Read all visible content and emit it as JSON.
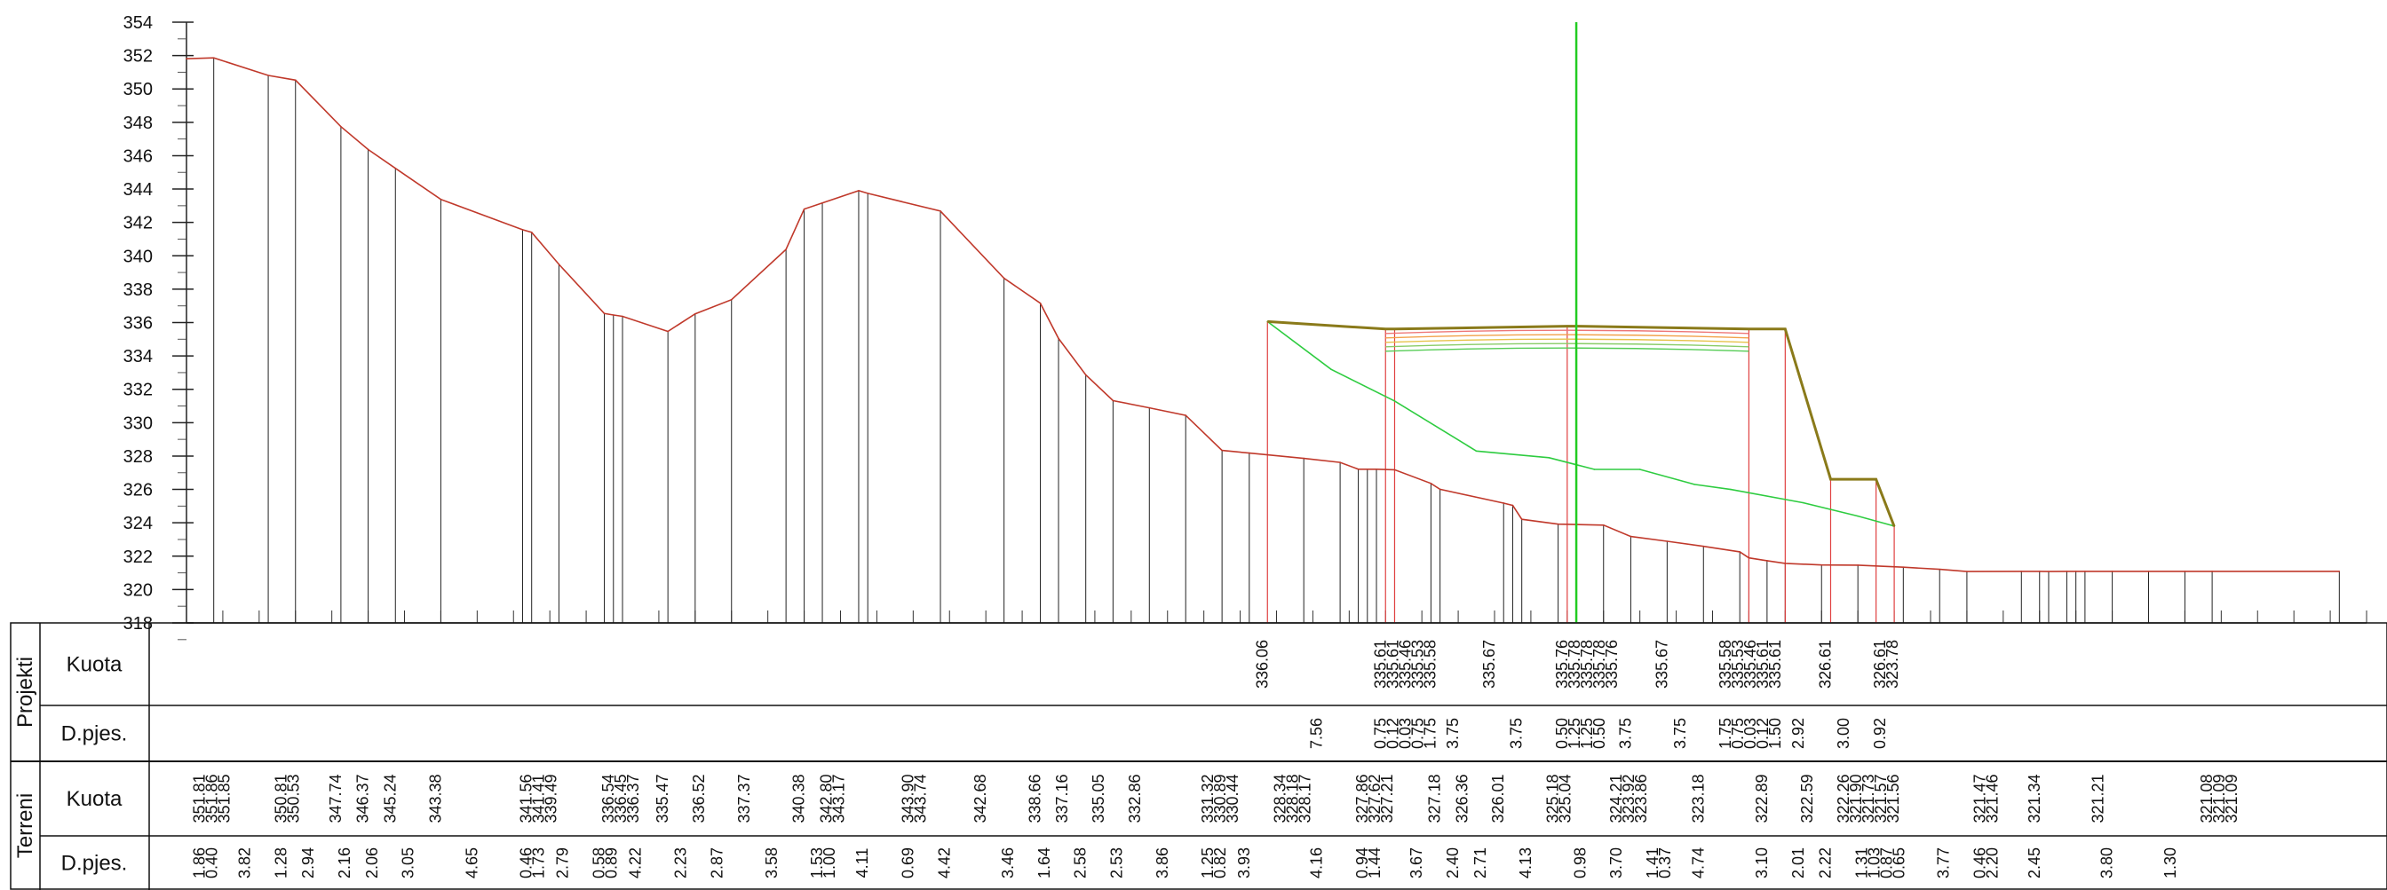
{
  "chart_data": {
    "type": "line",
    "ylim": [
      318,
      354
    ],
    "yticks": [
      354,
      352,
      350,
      348,
      346,
      344,
      342,
      340,
      338,
      336,
      334,
      332,
      330,
      328,
      326,
      324,
      322,
      320,
      318
    ],
    "xlim": [
      0,
      240
    ],
    "grid": false,
    "series": [
      {
        "key": "terrain",
        "color": "#c0392b",
        "x": [
          0,
          3,
          9,
          12,
          17,
          20,
          23,
          28,
          37,
          38,
          41,
          46,
          47,
          48,
          53,
          56,
          60,
          66,
          68,
          70,
          74,
          75,
          83,
          90,
          94,
          96,
          99,
          102,
          106,
          110,
          114,
          117,
          123,
          127,
          129,
          130,
          131,
          133,
          137,
          138,
          145,
          146,
          147,
          151,
          156,
          159,
          163,
          167,
          171,
          172,
          174,
          176,
          180,
          184,
          189,
          193,
          196,
          202,
          204,
          205,
          207,
          208,
          209,
          212,
          216,
          220,
          223,
          237
        ],
        "y": [
          351.81,
          351.86,
          350.81,
          350.53,
          347.74,
          346.37,
          345.24,
          343.38,
          341.56,
          341.41,
          339.49,
          336.54,
          336.45,
          336.37,
          335.47,
          336.52,
          337.37,
          340.38,
          342.8,
          343.17,
          343.9,
          343.74,
          342.68,
          338.66,
          337.16,
          335.05,
          332.86,
          331.32,
          330.89,
          330.44,
          328.34,
          328.18,
          327.86,
          327.62,
          327.21,
          327.21,
          327.21,
          327.18,
          326.36,
          326.01,
          325.18,
          325.04,
          324.21,
          323.92,
          323.86,
          323.18,
          322.89,
          322.59,
          322.26,
          321.9,
          321.73,
          321.57,
          321.47,
          321.46,
          321.34,
          321.21,
          321.08,
          321.09,
          321.09,
          321.08,
          321.09,
          321.09,
          321.09,
          321.09,
          321.09,
          321.09,
          321.09,
          321.09
        ]
      },
      {
        "key": "existing-ground",
        "color": "#2ecc40",
        "x": [
          119,
          126,
          133,
          142,
          150,
          155,
          160,
          166,
          170,
          178,
          184,
          188
        ],
        "y": [
          336.06,
          333.2,
          331.3,
          328.3,
          327.9,
          327.2,
          327.2,
          326.3,
          326.0,
          325.2,
          324.4,
          323.8
        ]
      },
      {
        "key": "design",
        "color": "#8a7a1a",
        "x": [
          119,
          132,
          133,
          152,
          153,
          172,
          176,
          181,
          186,
          188
        ],
        "y": [
          336.06,
          335.61,
          335.61,
          335.78,
          335.78,
          335.61,
          335.61,
          326.61,
          326.61,
          323.78
        ]
      }
    ],
    "axis_line": {
      "x": 153,
      "color": "#22cc22"
    },
    "bands": [
      {
        "group": "Projekti",
        "row": "Kuota"
      },
      {
        "group": "Projekti",
        "row": "D.pjes."
      },
      {
        "group": "Terreni",
        "row": "Kuota"
      },
      {
        "group": "Terreni",
        "row": "D.pjes."
      }
    ],
    "projekti_kuota": [
      {
        "x": 119,
        "values": [
          "336.06"
        ]
      },
      {
        "x": 132,
        "values": [
          "335.61",
          "335.61",
          "335.46",
          "335.53",
          "335.58"
        ]
      },
      {
        "x": 144,
        "values": [
          "335.67"
        ]
      },
      {
        "x": 152,
        "values": [
          "335.76",
          "335.78",
          "335.78",
          "335.78",
          "335.76"
        ]
      },
      {
        "x": 163,
        "values": [
          "335.67"
        ]
      },
      {
        "x": 170,
        "values": [
          "335.58",
          "335.53",
          "335.46",
          "335.61",
          "335.61"
        ]
      },
      {
        "x": 181,
        "values": [
          "326.61"
        ]
      },
      {
        "x": 187,
        "values": [
          "326.61",
          "323.78"
        ]
      }
    ],
    "projekti_dpjes": [
      {
        "x": 125,
        "values": [
          "7.56"
        ]
      },
      {
        "x": 132,
        "values": [
          "0.75",
          "0.12",
          "0.03",
          "0.75",
          "1.75"
        ]
      },
      {
        "x": 140,
        "values": [
          "3.75"
        ]
      },
      {
        "x": 147,
        "values": [
          "3.75"
        ]
      },
      {
        "x": 152,
        "values": [
          "0.50",
          "1.25",
          "1.25",
          "0.50"
        ]
      },
      {
        "x": 159,
        "values": [
          "3.75"
        ]
      },
      {
        "x": 165,
        "values": [
          "3.75"
        ]
      },
      {
        "x": 170,
        "values": [
          "1.75",
          "0.75",
          "0.03",
          "0.12",
          "1.50"
        ]
      },
      {
        "x": 178,
        "values": [
          "2.92"
        ]
      },
      {
        "x": 183,
        "values": [
          "3.00"
        ]
      },
      {
        "x": 187,
        "values": [
          "0.92"
        ]
      }
    ],
    "terreni_kuota": [
      {
        "x": 2,
        "values": [
          "351.81",
          "351.86",
          "351.85"
        ]
      },
      {
        "x": 11,
        "values": [
          "350.81",
          "350.53"
        ]
      },
      {
        "x": 17,
        "values": [
          "347.74"
        ]
      },
      {
        "x": 20,
        "values": [
          "346.37"
        ]
      },
      {
        "x": 23,
        "values": [
          "345.24"
        ]
      },
      {
        "x": 28,
        "values": [
          "343.38"
        ]
      },
      {
        "x": 38,
        "values": [
          "341.56",
          "341.41",
          "339.49"
        ]
      },
      {
        "x": 47,
        "values": [
          "336.54",
          "336.45",
          "336.37"
        ]
      },
      {
        "x": 53,
        "values": [
          "335.47"
        ]
      },
      {
        "x": 57,
        "values": [
          "336.52"
        ]
      },
      {
        "x": 62,
        "values": [
          "337.37"
        ]
      },
      {
        "x": 68,
        "values": [
          "340.38"
        ]
      },
      {
        "x": 71,
        "values": [
          "342.80",
          "343.17"
        ]
      },
      {
        "x": 80,
        "values": [
          "343.90",
          "343.74"
        ]
      },
      {
        "x": 88,
        "values": [
          "342.68"
        ]
      },
      {
        "x": 94,
        "values": [
          "338.66"
        ]
      },
      {
        "x": 97,
        "values": [
          "337.16"
        ]
      },
      {
        "x": 101,
        "values": [
          "335.05"
        ]
      },
      {
        "x": 105,
        "values": [
          "332.86"
        ]
      },
      {
        "x": 113,
        "values": [
          "331.32",
          "330.89",
          "330.44"
        ]
      },
      {
        "x": 121,
        "values": [
          "328.34",
          "328.18",
          "328.17"
        ]
      },
      {
        "x": 130,
        "values": [
          "327.86",
          "327.62",
          "327.21"
        ]
      },
      {
        "x": 138,
        "values": [
          "327.18"
        ]
      },
      {
        "x": 141,
        "values": [
          "326.36"
        ]
      },
      {
        "x": 145,
        "values": [
          "326.01"
        ]
      },
      {
        "x": 151,
        "values": [
          "325.18",
          "325.04"
        ]
      },
      {
        "x": 158,
        "values": [
          "324.21",
          "323.92",
          "323.86"
        ]
      },
      {
        "x": 167,
        "values": [
          "323.18"
        ]
      },
      {
        "x": 174,
        "values": [
          "322.89"
        ]
      },
      {
        "x": 179,
        "values": [
          "322.59"
        ]
      },
      {
        "x": 183,
        "values": [
          "322.26",
          "321.90",
          "321.73",
          "321.57",
          "321.56"
        ]
      },
      {
        "x": 198,
        "values": [
          "321.47",
          "321.46"
        ]
      },
      {
        "x": 204,
        "values": [
          "321.34"
        ]
      },
      {
        "x": 211,
        "values": [
          "321.21"
        ]
      },
      {
        "x": 223,
        "values": [
          "321.08",
          "321.09",
          "321.09"
        ]
      }
    ],
    "terreni_dpjes": [
      {
        "x": 2,
        "values": [
          "1.86",
          "0.40"
        ]
      },
      {
        "x": 7,
        "values": [
          "3.82"
        ]
      },
      {
        "x": 11,
        "values": [
          "1.28"
        ]
      },
      {
        "x": 14,
        "values": [
          "2.94"
        ]
      },
      {
        "x": 18,
        "values": [
          "2.16"
        ]
      },
      {
        "x": 21,
        "values": [
          "2.06"
        ]
      },
      {
        "x": 25,
        "values": [
          "3.05"
        ]
      },
      {
        "x": 32,
        "values": [
          "4.65"
        ]
      },
      {
        "x": 38,
        "values": [
          "0.46",
          "1.73"
        ]
      },
      {
        "x": 42,
        "values": [
          "2.79"
        ]
      },
      {
        "x": 46,
        "values": [
          "0.58",
          "0.89"
        ]
      },
      {
        "x": 50,
        "values": [
          "4.22"
        ]
      },
      {
        "x": 55,
        "values": [
          "2.23"
        ]
      },
      {
        "x": 59,
        "values": [
          "2.87"
        ]
      },
      {
        "x": 65,
        "values": [
          "3.58"
        ]
      },
      {
        "x": 70,
        "values": [
          "1.53",
          "1.00"
        ]
      },
      {
        "x": 75,
        "values": [
          "4.11"
        ]
      },
      {
        "x": 80,
        "values": [
          "0.69"
        ]
      },
      {
        "x": 84,
        "values": [
          "4.42"
        ]
      },
      {
        "x": 91,
        "values": [
          "3.46"
        ]
      },
      {
        "x": 95,
        "values": [
          "1.64"
        ]
      },
      {
        "x": 99,
        "values": [
          "2.58"
        ]
      },
      {
        "x": 103,
        "values": [
          "2.53"
        ]
      },
      {
        "x": 108,
        "values": [
          "3.86"
        ]
      },
      {
        "x": 113,
        "values": [
          "1.25",
          "0.82"
        ]
      },
      {
        "x": 117,
        "values": [
          "3.93"
        ]
      },
      {
        "x": 125,
        "values": [
          "4.16"
        ]
      },
      {
        "x": 130,
        "values": [
          "0.94",
          "1.44"
        ]
      },
      {
        "x": 136,
        "values": [
          "3.67"
        ]
      },
      {
        "x": 140,
        "values": [
          "2.40"
        ]
      },
      {
        "x": 143,
        "values": [
          "2.71"
        ]
      },
      {
        "x": 148,
        "values": [
          "4.13"
        ]
      },
      {
        "x": 154,
        "values": [
          "0.98"
        ]
      },
      {
        "x": 158,
        "values": [
          "3.70"
        ]
      },
      {
        "x": 162,
        "values": [
          "1.41",
          "0.37"
        ]
      },
      {
        "x": 167,
        "values": [
          "4.74"
        ]
      },
      {
        "x": 174,
        "values": [
          "3.10"
        ]
      },
      {
        "x": 178,
        "values": [
          "2.01"
        ]
      },
      {
        "x": 181,
        "values": [
          "2.22"
        ]
      },
      {
        "x": 185,
        "values": [
          "1.31",
          "1.03",
          "0.87",
          "0.65"
        ]
      },
      {
        "x": 194,
        "values": [
          "3.77"
        ]
      },
      {
        "x": 198,
        "values": [
          "0.46",
          "2.20"
        ]
      },
      {
        "x": 204,
        "values": [
          "2.45"
        ]
      },
      {
        "x": 212,
        "values": [
          "3.80"
        ]
      },
      {
        "x": 219,
        "values": [
          "1.30"
        ]
      }
    ]
  }
}
